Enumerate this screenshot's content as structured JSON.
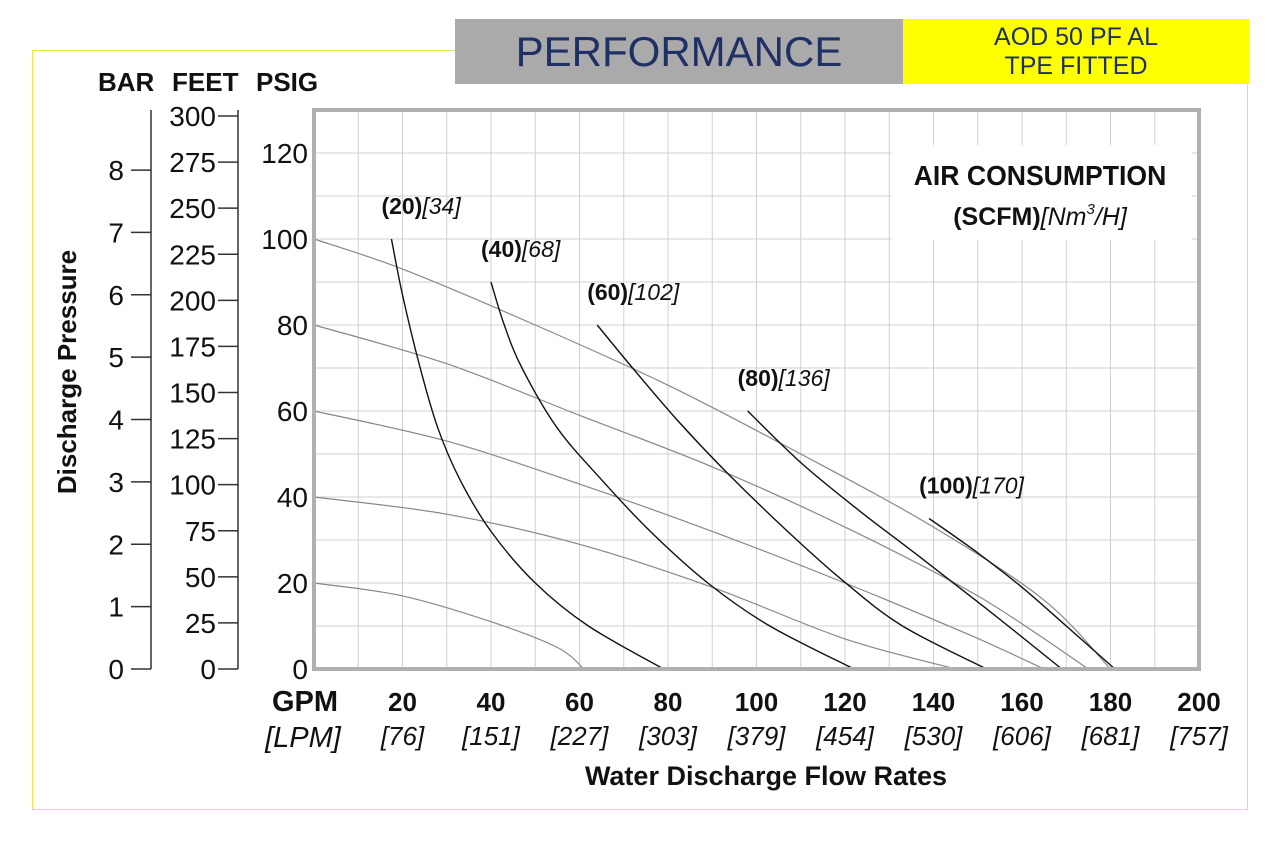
{
  "header": {
    "title": "PERFORMANCE",
    "model_line1": "AOD 50 PF AL",
    "model_line2": "TPE FITTED"
  },
  "colors": {
    "header_bg": "#aaaaaa",
    "title_text": "#1f3066",
    "model_bg": "#ffff00",
    "frame": "#e8e84a",
    "plot_border": "#b0b0b0",
    "grid": "#d0d0d0",
    "air_curve": "#111111",
    "pressure_curve": "#888888"
  },
  "chart_data": {
    "type": "line",
    "title": "",
    "xlabel": "Water Discharge Flow Rates",
    "ylabel": "Discharge Pressure",
    "xlim": [
      0,
      200
    ],
    "ylim": [
      0,
      130
    ],
    "grid": true,
    "x_unit_primary": "GPM",
    "x_unit_secondary": "[LPM]",
    "x_ticks": [
      {
        "gpm": "20",
        "lpm": "[76]"
      },
      {
        "gpm": "40",
        "lpm": "[151]"
      },
      {
        "gpm": "60",
        "lpm": "[227]"
      },
      {
        "gpm": "80",
        "lpm": "[303]"
      },
      {
        "gpm": "100",
        "lpm": "[379]"
      },
      {
        "gpm": "120",
        "lpm": "[454]"
      },
      {
        "gpm": "140",
        "lpm": "[530]"
      },
      {
        "gpm": "160",
        "lpm": "[606]"
      },
      {
        "gpm": "180",
        "lpm": "[681]"
      },
      {
        "gpm": "200",
        "lpm": "[757]"
      }
    ],
    "psig_ticks": [
      "0",
      "20",
      "40",
      "60",
      "80",
      "100",
      "120"
    ],
    "pressure_axes": {
      "bar_label": "BAR",
      "feet_label": "FEET",
      "psig_label": "PSIG",
      "bar_ticks": [
        "0",
        "1",
        "2",
        "3",
        "4",
        "5",
        "6",
        "7",
        "8"
      ],
      "feet_ticks": [
        "0",
        "25",
        "50",
        "75",
        "100",
        "125",
        "150",
        "175",
        "200",
        "225",
        "250",
        "275",
        "300"
      ]
    },
    "legend": {
      "title_line1": "AIR CONSUMPTION",
      "title_line2_bold": "(SCFM)",
      "title_line2_italic_pre": "[Nm",
      "title_line2_sup": "3",
      "title_line2_italic_post": "/H]",
      "placement": "top-right"
    },
    "air_curves": [
      {
        "scfm": "(20)",
        "nm3h": "[34]",
        "points": [
          [
            17.5,
            100
          ],
          [
            20,
            87
          ],
          [
            24,
            70
          ],
          [
            28,
            56
          ],
          [
            33,
            44
          ],
          [
            40,
            32
          ],
          [
            50,
            20
          ],
          [
            62,
            10
          ],
          [
            79,
            0
          ]
        ]
      },
      {
        "scfm": "(40)",
        "nm3h": "[68]",
        "points": [
          [
            40,
            90
          ],
          [
            43,
            80
          ],
          [
            47,
            70
          ],
          [
            55,
            56
          ],
          [
            65,
            44
          ],
          [
            76,
            32
          ],
          [
            89,
            20
          ],
          [
            103,
            10
          ],
          [
            122,
            0
          ]
        ]
      },
      {
        "scfm": "(60)",
        "nm3h": "[102]",
        "points": [
          [
            64,
            80
          ],
          [
            72,
            70
          ],
          [
            82,
            58
          ],
          [
            93,
            46
          ],
          [
            106,
            33
          ],
          [
            119,
            21
          ],
          [
            133,
            10
          ],
          [
            152,
            0
          ]
        ]
      },
      {
        "scfm": "(80)",
        "nm3h": "[136]",
        "points": [
          [
            98,
            60
          ],
          [
            110,
            48
          ],
          [
            123,
            37
          ],
          [
            137,
            26
          ],
          [
            152,
            14
          ],
          [
            169,
            0
          ]
        ]
      },
      {
        "scfm": "(100)",
        "nm3h": "[170]",
        "points": [
          [
            139,
            35
          ],
          [
            150,
            27
          ],
          [
            160,
            19
          ],
          [
            170,
            10
          ],
          [
            181,
            0
          ]
        ]
      }
    ],
    "pressure_curves": [
      {
        "points": [
          [
            0,
            100
          ],
          [
            20,
            93
          ],
          [
            50,
            80
          ],
          [
            80,
            66
          ],
          [
            110,
            50
          ],
          [
            140,
            33
          ],
          [
            165,
            16
          ],
          [
            180,
            0
          ]
        ]
      },
      {
        "points": [
          [
            0,
            80
          ],
          [
            30,
            71
          ],
          [
            60,
            59
          ],
          [
            90,
            47
          ],
          [
            120,
            33
          ],
          [
            150,
            17
          ],
          [
            175,
            0
          ]
        ]
      },
      {
        "points": [
          [
            0,
            60
          ],
          [
            30,
            53
          ],
          [
            60,
            43
          ],
          [
            90,
            32
          ],
          [
            120,
            20
          ],
          [
            148,
            8
          ],
          [
            165,
            0
          ]
        ]
      },
      {
        "points": [
          [
            0,
            40
          ],
          [
            30,
            36
          ],
          [
            60,
            29
          ],
          [
            90,
            19
          ],
          [
            120,
            7
          ],
          [
            145,
            0
          ]
        ]
      },
      {
        "points": [
          [
            0,
            20
          ],
          [
            20,
            17
          ],
          [
            40,
            11
          ],
          [
            55,
            5
          ],
          [
            61,
            0
          ]
        ]
      }
    ]
  }
}
